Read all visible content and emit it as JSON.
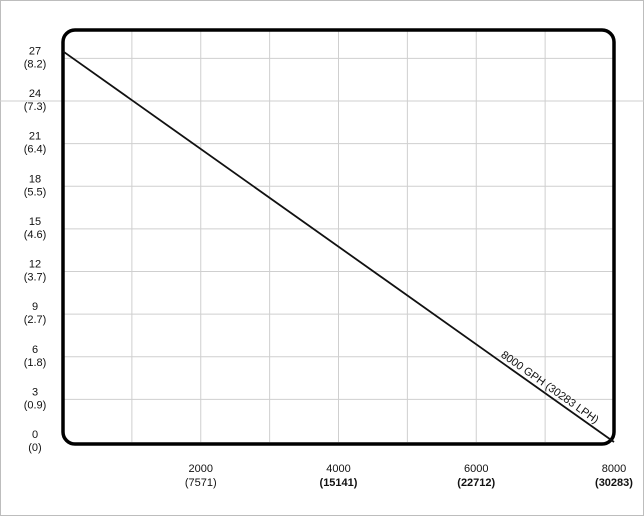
{
  "chart_data": {
    "type": "line",
    "title": "",
    "xlabel": "",
    "ylabel": "",
    "x_ticks": [
      {
        "value": 2000,
        "label": "2000",
        "sublabel": "(7571)",
        "bold_sub": false
      },
      {
        "value": 4000,
        "label": "4000",
        "sublabel": "(15141)",
        "bold_sub": true
      },
      {
        "value": 6000,
        "label": "6000",
        "sublabel": "(22712)",
        "bold_sub": true
      },
      {
        "value": 8000,
        "label": "8000",
        "sublabel": "(30283)",
        "bold_sub": true
      }
    ],
    "y_ticks": [
      {
        "value": 0,
        "label": "0",
        "sublabel": "(0)"
      },
      {
        "value": 3,
        "label": "3",
        "sublabel": "(0.9)"
      },
      {
        "value": 6,
        "label": "6",
        "sublabel": "(1.8)"
      },
      {
        "value": 9,
        "label": "9",
        "sublabel": "(2.7)"
      },
      {
        "value": 12,
        "label": "12",
        "sublabel": "(3.7)"
      },
      {
        "value": 15,
        "label": "15",
        "sublabel": "(4.6)"
      },
      {
        "value": 18,
        "label": "18",
        "sublabel": "(5.5)"
      },
      {
        "value": 21,
        "label": "21",
        "sublabel": "(6.4)"
      },
      {
        "value": 24,
        "label": "24",
        "sublabel": "(7.3)"
      },
      {
        "value": 27,
        "label": "27",
        "sublabel": "(8.2)"
      }
    ],
    "xlim": [
      0,
      8000
    ],
    "ylim": [
      0,
      29
    ],
    "x_grid": [
      1000,
      2000,
      3000,
      4000,
      5000,
      6000,
      7000
    ],
    "y_grid": [
      3,
      6,
      9,
      12,
      15,
      18,
      21,
      24,
      27
    ],
    "series": [
      {
        "name": "8000 GPH (30283 LPH)",
        "x": [
          0,
          8000
        ],
        "y": [
          27.5,
          0
        ]
      }
    ],
    "grid": true,
    "line_color": "#111111",
    "grid_color": "#cfcfcf",
    "frame_color": "#000000"
  }
}
